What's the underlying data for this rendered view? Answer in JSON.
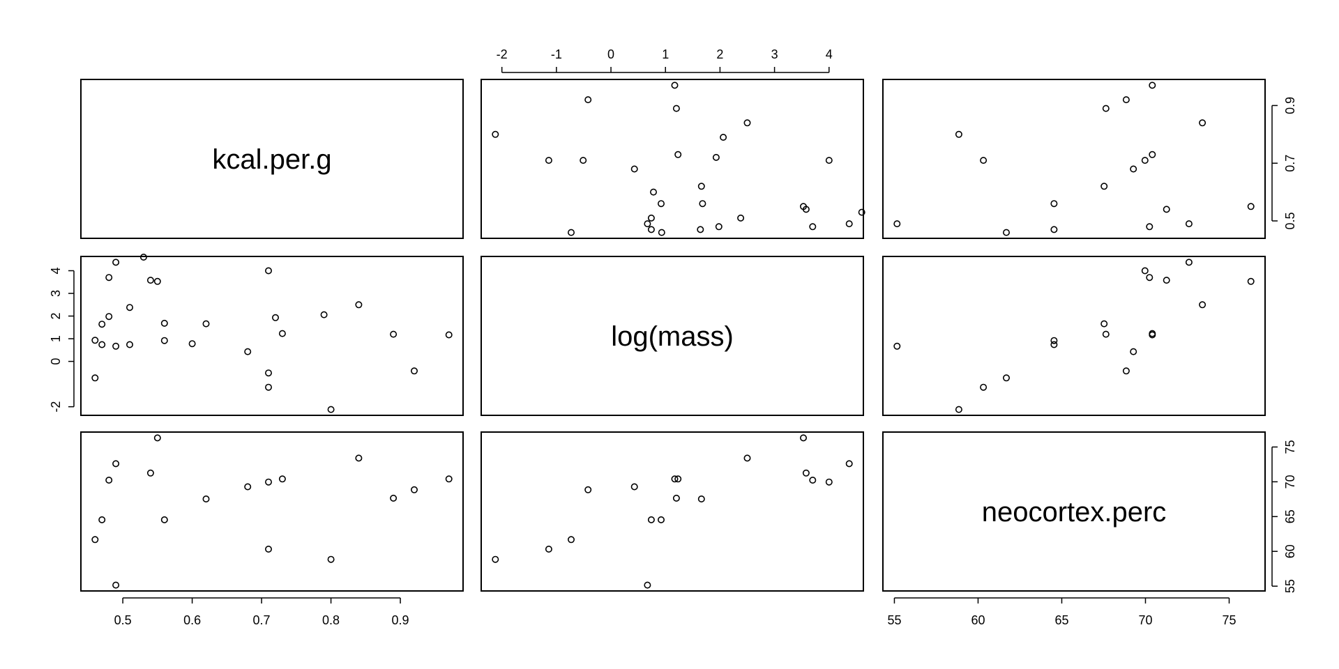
{
  "chart_data": {
    "type": "scatter",
    "layout": "scatterplot-matrix",
    "variables": [
      "kcal.per.g",
      "log(mass)",
      "neocortex.perc"
    ],
    "ranges": [
      [
        0.46,
        0.97
      ],
      [
        -2.12,
        4.37
      ],
      [
        55.16,
        76.3
      ]
    ],
    "ticks": [
      {
        "values": [
          0.5,
          0.6,
          0.7,
          0.8,
          0.9
        ],
        "labels": [
          "0.5",
          "0.6",
          "0.7",
          "0.8",
          "0.9"
        ]
      },
      {
        "values": [
          -2,
          -1,
          0,
          1,
          2,
          3,
          4
        ],
        "labels": [
          "-2",
          "-1",
          "0",
          "1",
          "2",
          "3",
          "4"
        ]
      },
      {
        "values": [
          55,
          60,
          65,
          70,
          75
        ],
        "labels": [
          "55",
          "60",
          "65",
          "70",
          "75"
        ]
      }
    ],
    "outer_ticks": {
      "bottom_x_var1": [
        0.5,
        0.6,
        0.7,
        0.8,
        0.9
      ],
      "top_x_var2": [
        -2,
        -1,
        0,
        1,
        2,
        3,
        4
      ],
      "bottom_x_var3": [
        55,
        60,
        65,
        70,
        75
      ],
      "left_y_var2": [
        -2,
        0,
        1,
        2,
        3,
        4
      ],
      "right_y_var1": [
        0.5,
        0.7,
        0.9
      ],
      "right_y_var3": [
        55,
        60,
        65,
        70,
        75
      ]
    },
    "points": [
      {
        "kcal": 0.49,
        "logmass": 0.67,
        "neo": 55.16
      },
      {
        "kcal": 0.47,
        "logmass": 0.74,
        "neo": 64.54
      },
      {
        "kcal": 0.56,
        "logmass": 0.92,
        "neo": 64.54
      },
      {
        "kcal": 0.89,
        "logmass": 1.2,
        "neo": 67.64
      },
      {
        "kcal": 0.92,
        "logmass": -0.42,
        "neo": 68.85
      },
      {
        "kcal": 0.8,
        "logmass": -2.12,
        "neo": 58.85
      },
      {
        "kcal": 0.46,
        "logmass": -0.73,
        "neo": 61.69
      },
      {
        "kcal": 0.71,
        "logmass": -1.14,
        "neo": 60.32
      },
      {
        "kcal": 0.71,
        "logmass": 4.0,
        "neo": 69.97
      },
      {
        "kcal": 0.73,
        "logmass": 1.23,
        "neo": 70.41
      },
      {
        "kcal": 0.68,
        "logmass": 0.43,
        "neo": 69.28
      },
      {
        "kcal": 0.62,
        "logmass": 1.66,
        "neo": 67.53
      },
      {
        "kcal": 0.48,
        "logmass": 3.7,
        "neo": 70.24
      },
      {
        "kcal": 0.55,
        "logmass": 3.53,
        "neo": 76.3
      },
      {
        "kcal": 0.97,
        "logmass": 1.17,
        "neo": 70.41
      },
      {
        "kcal": 0.84,
        "logmass": 2.5,
        "neo": 73.4
      },
      {
        "kcal": 0.54,
        "logmass": 3.58,
        "neo": 71.26
      },
      {
        "kcal": 0.49,
        "logmass": 4.37,
        "neo": 72.6
      },
      {
        "kcal": 0.53,
        "logmass": 4.6,
        "neo": null
      },
      {
        "kcal": 0.48,
        "logmass": 1.98,
        "neo": null
      },
      {
        "kcal": 0.51,
        "logmass": 2.38,
        "neo": null
      },
      {
        "kcal": 0.51,
        "logmass": 0.74,
        "neo": null
      },
      {
        "kcal": 0.46,
        "logmass": 0.93,
        "neo": null
      },
      {
        "kcal": 0.47,
        "logmass": 1.64,
        "neo": null
      },
      {
        "kcal": 0.6,
        "logmass": 0.78,
        "neo": null
      },
      {
        "kcal": 0.56,
        "logmass": 1.68,
        "neo": null
      },
      {
        "kcal": 0.71,
        "logmass": -0.51,
        "neo": null
      },
      {
        "kcal": 0.72,
        "logmass": 1.93,
        "neo": null
      },
      {
        "kcal": 0.79,
        "logmass": 2.06,
        "neo": null
      }
    ]
  }
}
